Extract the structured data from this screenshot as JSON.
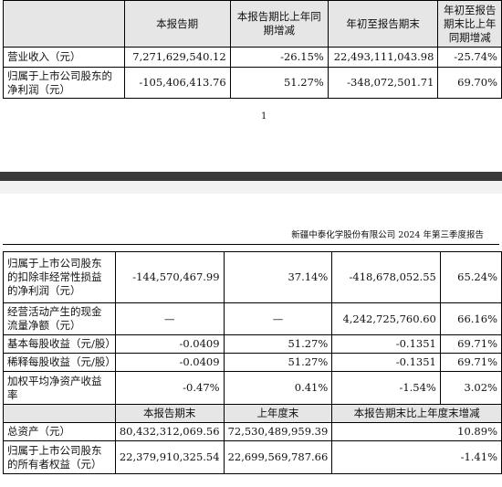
{
  "table1": {
    "headers": [
      "",
      "本报告期",
      "本报告期比上年同期增减",
      "年初至报告期末",
      "年初至报告期末比上年同期增减"
    ],
    "rows": [
      [
        "营业收入（元）",
        "7,271,629,540.12",
        "-26.15%",
        "22,493,111,043.98",
        "-25.74%"
      ],
      [
        "归属于上市公司股东的净利润（元）",
        "-105,406,413.76",
        "51.27%",
        "-348,072,501.71",
        "69.70%"
      ]
    ]
  },
  "page_number": "1",
  "running_header": "新疆中泰化学股份有限公司 2024 年第三季度报告",
  "table2": {
    "rows": [
      [
        "归属于上市公司股东的扣除非经常性损益的净利润（元）",
        "-144,570,467.99",
        "37.14%",
        "-418,678,052.55",
        "65.24%"
      ],
      [
        "经营活动产生的现金流量净额（元）",
        "—",
        "—",
        "4,242,725,760.60",
        "66.16%"
      ],
      [
        "基本每股收益（元/股）",
        "-0.0409",
        "51.27%",
        "-0.1351",
        "69.71%"
      ],
      [
        "稀释每股收益（元/股）",
        "-0.0409",
        "51.27%",
        "-0.1351",
        "69.71%"
      ],
      [
        "加权平均净资产收益率",
        "-0.47%",
        "0.41%",
        "-1.54%",
        "3.02%"
      ]
    ],
    "subheaders": [
      "",
      "本报告期末",
      "上年度末",
      "本报告期末比上年度末增减"
    ],
    "balance_rows": [
      [
        "总资产（元）",
        "80,432,312,069.56",
        "72,530,489,959.39",
        "10.89%"
      ],
      [
        "归属于上市公司股东的所有者权益（元）",
        "22,379,910,325.54",
        "22,699,569,787.66",
        "-1.41%"
      ]
    ]
  }
}
